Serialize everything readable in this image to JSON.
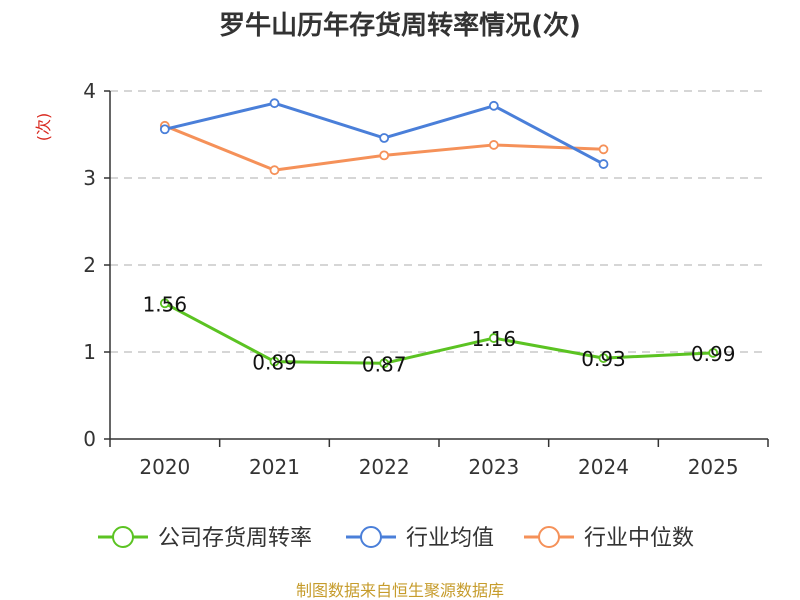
{
  "chart_data": {
    "type": "line",
    "title": "罗牛山历年存货周转率情况(次)",
    "ylabel": "(次)",
    "categories": [
      "2020",
      "2021",
      "2022",
      "2023",
      "2024",
      "2025"
    ],
    "ylim": [
      0,
      4
    ],
    "yticks": [
      0,
      1,
      2,
      3,
      4
    ],
    "grid": true,
    "legend_position": "bottom",
    "series": [
      {
        "name": "公司存货周转率",
        "color": "#5bc322",
        "values": [
          1.56,
          0.89,
          0.87,
          1.16,
          0.93,
          0.99
        ],
        "labels": [
          "1.56",
          "0.89",
          "0.87",
          "1.16",
          "0.93",
          "0.99"
        ]
      },
      {
        "name": "行业均值",
        "color": "#4a7fd9",
        "values": [
          3.56,
          3.86,
          3.46,
          3.83,
          3.16,
          null
        ]
      },
      {
        "name": "行业中位数",
        "color": "#f59159",
        "values": [
          3.6,
          3.09,
          3.26,
          3.38,
          3.33,
          null
        ]
      }
    ],
    "source": "制图数据来自恒生聚源数据库"
  }
}
